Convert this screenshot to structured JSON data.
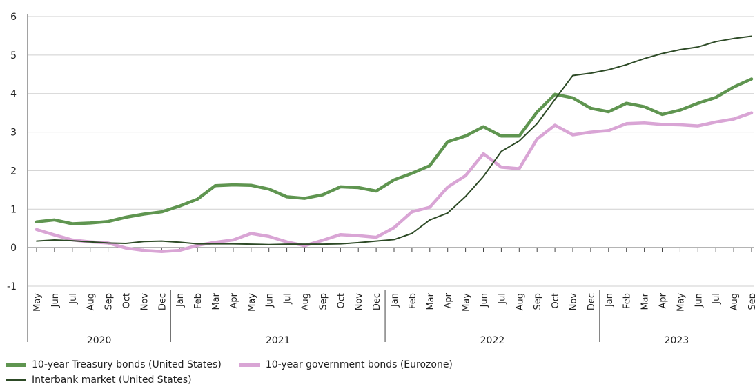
{
  "chart_data": {
    "type": "line",
    "ylim": [
      -1,
      6
    ],
    "yticks": [
      "6",
      "5",
      "4",
      "3",
      "2",
      "1",
      "0",
      "-1"
    ],
    "ytick_values": [
      6,
      5,
      4,
      3,
      2,
      1,
      0,
      -1
    ],
    "x": [
      "May",
      "Jun",
      "Jul",
      "Aug",
      "Sep",
      "Oct",
      "Nov",
      "Dec",
      "Jan",
      "Feb",
      "Mar",
      "Apr",
      "May",
      "Jun",
      "Jul",
      "Aug",
      "Sep",
      "Oct",
      "Nov",
      "Dec",
      "Jan",
      "Feb",
      "Mar",
      "Apr",
      "May",
      "Jun",
      "Jul",
      "Aug",
      "Sep",
      "Oct",
      "Nov",
      "Dec",
      "Jan",
      "Feb",
      "Mar",
      "Apr",
      "May",
      "Jun",
      "Jul",
      "Aug",
      "Sep"
    ],
    "years": [
      {
        "label": "2020",
        "start": 0,
        "end": 7
      },
      {
        "label": "2021",
        "start": 8,
        "end": 19
      },
      {
        "label": "2022",
        "start": 20,
        "end": 31
      },
      {
        "label": "2023",
        "start": 32,
        "end": 40
      }
    ],
    "grid": true,
    "legend_position": "bottom-left",
    "series": [
      {
        "name": "10-year Treasury bonds (United States)",
        "color": "#5f9550",
        "values": [
          0.67,
          0.72,
          0.62,
          0.64,
          0.68,
          0.79,
          0.87,
          0.93,
          1.08,
          1.26,
          1.61,
          1.63,
          1.62,
          1.52,
          1.32,
          1.28,
          1.37,
          1.58,
          1.56,
          1.47,
          1.76,
          1.93,
          2.13,
          2.75,
          2.9,
          3.14,
          2.9,
          2.9,
          3.52,
          3.98,
          3.89,
          3.62,
          3.53,
          3.75,
          3.66,
          3.46,
          3.57,
          3.75,
          3.9,
          4.17,
          4.38
        ]
      },
      {
        "name": "10-year government bonds (Eurozone)",
        "color": "#d9a5d5",
        "values": [
          0.47,
          0.33,
          0.2,
          0.15,
          0.12,
          -0.01,
          -0.07,
          -0.1,
          -0.07,
          0.06,
          0.14,
          0.2,
          0.37,
          0.29,
          0.15,
          0.05,
          0.19,
          0.34,
          0.31,
          0.27,
          0.52,
          0.93,
          1.05,
          1.57,
          1.87,
          2.44,
          2.09,
          2.05,
          2.82,
          3.18,
          2.93,
          3.0,
          3.04,
          3.22,
          3.24,
          3.2,
          3.19,
          3.16,
          3.26,
          3.34,
          3.5
        ]
      },
      {
        "name": "Interbank market (United States)",
        "color": "#2d4a26",
        "values": [
          0.17,
          0.2,
          0.18,
          0.15,
          0.12,
          0.11,
          0.16,
          0.17,
          0.14,
          0.1,
          0.1,
          0.1,
          0.09,
          0.08,
          0.09,
          0.09,
          0.09,
          0.1,
          0.13,
          0.17,
          0.21,
          0.37,
          0.72,
          0.9,
          1.33,
          1.85,
          2.5,
          2.77,
          3.22,
          3.85,
          4.47,
          4.53,
          4.62,
          4.75,
          4.91,
          5.04,
          5.14,
          5.21,
          5.35,
          5.43,
          5.49
        ]
      }
    ]
  },
  "legend": {
    "items": [
      {
        "label": "10-year Treasury bonds (United States)",
        "color": "#5f9550"
      },
      {
        "label": "10-year government bonds (Eurozone)",
        "color": "#d9a5d5"
      },
      {
        "label": "Interbank market (United States)",
        "color": "#2d4a26"
      }
    ]
  }
}
